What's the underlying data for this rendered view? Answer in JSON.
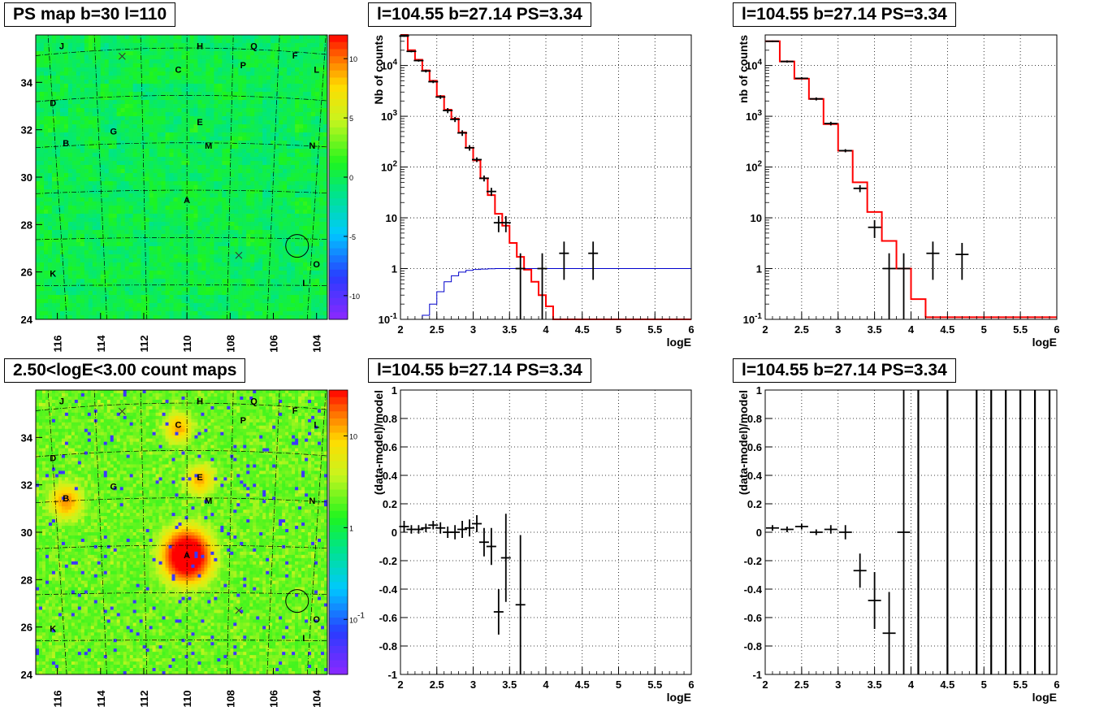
{
  "titles": {
    "map_top": "PS map b=30 l=110",
    "spec_top_mid": "l=104.55 b=27.14 PS=3.34",
    "spec_top_right": "l=104.55 b=27.14 PS=3.34",
    "map_bottom": "2.50<logE<3.00 count maps",
    "res_bottom_mid": "l=104.55 b=27.14 PS=3.34",
    "res_bottom_right": "l=104.55 b=27.14 PS=3.34"
  },
  "colors": {
    "data": "#000000",
    "model": "#ff0000",
    "model_blue": "#0000cc",
    "grid": "#000000"
  },
  "chart_data": [
    {
      "id": "ps_map",
      "type": "heatmap",
      "title": "PS map b=30 l=110",
      "xlim": [
        117,
        103.5
      ],
      "ylim": [
        24,
        36
      ],
      "x_ticks": [
        "116",
        "114",
        "112",
        "110",
        "108",
        "106",
        "104"
      ],
      "y_ticks": [
        "24",
        "26",
        "28",
        "30",
        "32",
        "34"
      ],
      "colorbar_ticks": [
        "10",
        "5",
        "0",
        "-5",
        "-10"
      ],
      "colorbar_range": [
        -12,
        12
      ],
      "sources": [
        {
          "label": "J",
          "l": 115.8,
          "b": 35.4
        },
        {
          "label": "H",
          "l": 109.4,
          "b": 35.4
        },
        {
          "label": "Q",
          "l": 106.9,
          "b": 35.4
        },
        {
          "label": "F",
          "l": 105.0,
          "b": 35.0
        },
        {
          "label": "P",
          "l": 107.4,
          "b": 34.6
        },
        {
          "label": "C",
          "l": 110.4,
          "b": 34.4
        },
        {
          "label": "L",
          "l": 104.0,
          "b": 34.4
        },
        {
          "label": "D",
          "l": 116.2,
          "b": 33.0
        },
        {
          "label": "E",
          "l": 109.4,
          "b": 32.2
        },
        {
          "label": "G",
          "l": 113.4,
          "b": 31.8
        },
        {
          "label": "B",
          "l": 115.6,
          "b": 31.3
        },
        {
          "label": "M",
          "l": 109.0,
          "b": 31.2
        },
        {
          "label": "N",
          "l": 104.2,
          "b": 31.2
        },
        {
          "label": "A",
          "l": 110.0,
          "b": 28.9
        },
        {
          "label": "O",
          "l": 104.0,
          "b": 26.2
        },
        {
          "label": "K",
          "l": 116.2,
          "b": 25.8
        },
        {
          "label": "I",
          "l": 104.6,
          "b": 25.4
        }
      ],
      "crosses": [
        {
          "l": 113.0,
          "b": 35.1
        },
        {
          "l": 107.6,
          "b": 26.7
        }
      ],
      "circle": {
        "l": 104.9,
        "b": 27.1
      }
    },
    {
      "id": "spec_mid",
      "type": "line",
      "title": "l=104.55 b=27.14 PS=3.34",
      "xlabel": "logE",
      "ylabel": "Nb of counts",
      "xlim": [
        2,
        6
      ],
      "ylim": [
        0.1,
        40000
      ],
      "log_y": true,
      "x_ticks": [
        "2",
        "2.5",
        "3",
        "3.5",
        "4",
        "4.5",
        "5",
        "5.5",
        "6"
      ],
      "y_ticks": [
        "10^-1",
        "1",
        "10",
        "10^2",
        "10^3",
        "10^4"
      ],
      "model_red": {
        "edges": [
          2.0,
          2.1,
          2.2,
          2.3,
          2.4,
          2.5,
          2.6,
          2.7,
          2.8,
          2.9,
          3.0,
          3.1,
          3.2,
          3.3,
          3.4,
          3.5,
          3.6,
          3.7,
          3.8,
          3.9,
          4.0,
          4.1,
          4.2,
          4.3,
          6.0
        ],
        "values": [
          40000,
          20000,
          13000,
          8000,
          5000,
          2500,
          1350,
          900,
          480,
          240,
          135,
          60,
          28,
          12,
          7,
          3.2,
          1.7,
          0.95,
          0.55,
          0.3,
          0.18,
          0.1,
          0.1,
          0.1
        ]
      },
      "model_blue": {
        "edges": [
          2.0,
          2.3,
          2.4,
          2.5,
          2.6,
          2.7,
          2.8,
          2.9,
          3.0,
          3.1,
          3.2,
          3.3,
          3.4,
          3.5,
          6.0
        ],
        "values": [
          0.1,
          0.12,
          0.2,
          0.35,
          0.55,
          0.72,
          0.85,
          0.92,
          0.96,
          0.98,
          0.99,
          1.0,
          1.0,
          1.0
        ]
      },
      "data": [
        {
          "x": 2.05,
          "y": 38000,
          "yerr": 1200
        },
        {
          "x": 2.15,
          "y": 19000,
          "yerr": 800
        },
        {
          "x": 2.25,
          "y": 12500,
          "yerr": 600
        },
        {
          "x": 2.35,
          "y": 7800,
          "yerr": 500
        },
        {
          "x": 2.45,
          "y": 4800,
          "yerr": 300
        },
        {
          "x": 2.55,
          "y": 2400,
          "yerr": 200
        },
        {
          "x": 2.65,
          "y": 1300,
          "yerr": 150
        },
        {
          "x": 2.75,
          "y": 870,
          "yerr": 100
        },
        {
          "x": 2.85,
          "y": 470,
          "yerr": 60
        },
        {
          "x": 2.95,
          "y": 240,
          "yerr": 30
        },
        {
          "x": 3.05,
          "y": 140,
          "yerr": 15
        },
        {
          "x": 3.15,
          "y": 60,
          "yerr": 8
        },
        {
          "x": 3.25,
          "y": 33,
          "yerr": 6
        },
        {
          "x": 3.35,
          "y": 8,
          "yerr": 2.8
        },
        {
          "x": 3.45,
          "y": 8,
          "yerr": 2.8
        },
        {
          "x": 3.65,
          "y": 1,
          "yerr": 1
        },
        {
          "x": 3.95,
          "y": 1,
          "yerr": 1
        },
        {
          "x": 4.25,
          "y": 2,
          "yerr": 1.4
        },
        {
          "x": 4.65,
          "y": 2,
          "yerr": 1.4
        }
      ]
    },
    {
      "id": "spec_right",
      "type": "line",
      "title": "l=104.55 b=27.14 PS=3.34",
      "xlabel": "logE",
      "ylabel": "nb of counts",
      "xlim": [
        2,
        6
      ],
      "ylim": [
        0.1,
        40000
      ],
      "log_y": true,
      "x_ticks": [
        "2",
        "2.5",
        "3",
        "3.5",
        "4",
        "4.5",
        "5",
        "5.5",
        "6"
      ],
      "y_ticks": [
        "10^-1",
        "1",
        "10",
        "10^2",
        "10^3",
        "10^4"
      ],
      "model_red": {
        "edges": [
          2.0,
          2.2,
          2.4,
          2.6,
          2.8,
          3.0,
          3.2,
          3.4,
          3.6,
          3.8,
          4.0,
          4.2,
          6.0
        ],
        "values": [
          30000,
          12000,
          5500,
          2200,
          700,
          210,
          50,
          13,
          3.5,
          1.0,
          0.25,
          0.11
        ]
      },
      "data": [
        {
          "x": 2.1,
          "y": 30000,
          "yerr": 1000
        },
        {
          "x": 2.3,
          "y": 12000,
          "yerr": 600
        },
        {
          "x": 2.5,
          "y": 5600,
          "yerr": 300
        },
        {
          "x": 2.7,
          "y": 2200,
          "yerr": 150
        },
        {
          "x": 2.9,
          "y": 720,
          "yerr": 60
        },
        {
          "x": 3.1,
          "y": 210,
          "yerr": 15
        },
        {
          "x": 3.3,
          "y": 38,
          "yerr": 6
        },
        {
          "x": 3.5,
          "y": 6.5,
          "yerr": 2.5
        },
        {
          "x": 3.7,
          "y": 1,
          "yerr": 1
        },
        {
          "x": 3.9,
          "y": 1,
          "yerr": 1
        },
        {
          "x": 4.3,
          "y": 2,
          "yerr": 1.4
        },
        {
          "x": 4.7,
          "y": 1.9,
          "yerr": 1.3
        }
      ]
    },
    {
      "id": "count_map",
      "type": "heatmap",
      "title": "2.50<logE<3.00 count maps",
      "xlim": [
        117,
        103.5
      ],
      "ylim": [
        24,
        36
      ],
      "x_ticks": [
        "116",
        "114",
        "112",
        "110",
        "108",
        "106",
        "104"
      ],
      "y_ticks": [
        "24",
        "26",
        "28",
        "30",
        "32",
        "34"
      ],
      "colorbar_ticks": [
        "10",
        "1",
        "10^-1"
      ],
      "log_color": true,
      "hotspots": [
        {
          "label": "A",
          "l": 110.0,
          "b": 29.0,
          "amp": 60,
          "width": 0.55
        },
        {
          "label": "B",
          "l": 115.6,
          "b": 31.3,
          "amp": 12,
          "width": 0.4
        },
        {
          "label": "C",
          "l": 110.4,
          "b": 34.4,
          "amp": 10,
          "width": 0.35
        },
        {
          "label": "E",
          "l": 109.4,
          "b": 32.2,
          "amp": 10,
          "width": 0.35
        }
      ],
      "sources": [
        {
          "label": "J",
          "l": 115.8,
          "b": 35.4
        },
        {
          "label": "H",
          "l": 109.4,
          "b": 35.4
        },
        {
          "label": "Q",
          "l": 106.9,
          "b": 35.4
        },
        {
          "label": "F",
          "l": 105.0,
          "b": 35.0
        },
        {
          "label": "P",
          "l": 107.4,
          "b": 34.6
        },
        {
          "label": "C",
          "l": 110.4,
          "b": 34.4
        },
        {
          "label": "L",
          "l": 104.0,
          "b": 34.4
        },
        {
          "label": "D",
          "l": 116.2,
          "b": 33.0
        },
        {
          "label": "E",
          "l": 109.4,
          "b": 32.2
        },
        {
          "label": "G",
          "l": 113.4,
          "b": 31.8
        },
        {
          "label": "B",
          "l": 115.6,
          "b": 31.3
        },
        {
          "label": "M",
          "l": 109.0,
          "b": 31.2
        },
        {
          "label": "N",
          "l": 104.2,
          "b": 31.2
        },
        {
          "label": "A",
          "l": 110.0,
          "b": 28.9
        },
        {
          "label": "O",
          "l": 104.0,
          "b": 26.2
        },
        {
          "label": "K",
          "l": 116.2,
          "b": 25.8
        },
        {
          "label": "I",
          "l": 104.6,
          "b": 25.4
        }
      ],
      "crosses": [
        {
          "l": 113.0,
          "b": 35.1
        },
        {
          "l": 107.6,
          "b": 26.7
        }
      ],
      "circle": {
        "l": 104.9,
        "b": 27.1
      }
    },
    {
      "id": "res_mid",
      "type": "scatter",
      "title": "l=104.55 b=27.14 PS=3.34",
      "xlabel": "logE",
      "ylabel": "(data-model)/model",
      "xlim": [
        2,
        6
      ],
      "ylim": [
        -1,
        1
      ],
      "x_ticks": [
        "2",
        "2.5",
        "3",
        "3.5",
        "4",
        "4.5",
        "5",
        "5.5",
        "6"
      ],
      "y_ticks": [
        "-1",
        "-0.8",
        "-0.6",
        "-0.4",
        "-0.2",
        "0",
        "0.2",
        "0.4",
        "0.6",
        "0.8",
        "1"
      ],
      "data": [
        {
          "x": 2.05,
          "y": 0.04,
          "yerr": 0.04
        },
        {
          "x": 2.15,
          "y": 0.02,
          "yerr": 0.03
        },
        {
          "x": 2.25,
          "y": 0.02,
          "yerr": 0.03
        },
        {
          "x": 2.35,
          "y": 0.03,
          "yerr": 0.03
        },
        {
          "x": 2.45,
          "y": 0.05,
          "yerr": 0.03
        },
        {
          "x": 2.55,
          "y": 0.03,
          "yerr": 0.04
        },
        {
          "x": 2.65,
          "y": 0.0,
          "yerr": 0.04
        },
        {
          "x": 2.75,
          "y": 0.0,
          "yerr": 0.05
        },
        {
          "x": 2.85,
          "y": 0.02,
          "yerr": 0.06
        },
        {
          "x": 2.95,
          "y": 0.03,
          "yerr": 0.06
        },
        {
          "x": 3.05,
          "y": 0.06,
          "yerr": 0.06
        },
        {
          "x": 3.15,
          "y": -0.07,
          "yerr": 0.1
        },
        {
          "x": 3.25,
          "y": -0.1,
          "yerr": 0.13
        },
        {
          "x": 3.35,
          "y": -0.56,
          "yerr": 0.16
        },
        {
          "x": 3.45,
          "y": -0.18,
          "yerr": 0.31
        },
        {
          "x": 3.65,
          "y": -0.51,
          "yerr": 0.49
        }
      ]
    },
    {
      "id": "res_right",
      "type": "scatter",
      "title": "l=104.55 b=27.14 PS=3.34",
      "xlabel": "logE",
      "ylabel": "(data-model)/model",
      "xlim": [
        2,
        6
      ],
      "ylim": [
        -1,
        1
      ],
      "x_ticks": [
        "2",
        "2.5",
        "3",
        "3.5",
        "4",
        "4.5",
        "5",
        "5.5",
        "6"
      ],
      "y_ticks": [
        "-1",
        "-0.8",
        "-0.6",
        "-0.4",
        "-0.2",
        "0",
        "0.2",
        "0.4",
        "0.6",
        "0.8",
        "1"
      ],
      "data": [
        {
          "x": 2.1,
          "y": 0.03,
          "yerr": 0.02
        },
        {
          "x": 2.3,
          "y": 0.02,
          "yerr": 0.02
        },
        {
          "x": 2.5,
          "y": 0.04,
          "yerr": 0.02
        },
        {
          "x": 2.7,
          "y": 0.0,
          "yerr": 0.02
        },
        {
          "x": 2.9,
          "y": 0.02,
          "yerr": 0.03
        },
        {
          "x": 3.1,
          "y": 0.0,
          "yerr": 0.05
        },
        {
          "x": 3.3,
          "y": -0.27,
          "yerr": 0.12
        },
        {
          "x": 3.5,
          "y": -0.48,
          "yerr": 0.2
        },
        {
          "x": 3.7,
          "y": -0.71,
          "yerr": 0.29
        },
        {
          "x": 3.9,
          "y": 0.0,
          "yerr": 1.0
        }
      ],
      "full_bars": [
        4.1,
        4.5,
        4.9,
        5.1,
        5.3,
        5.5,
        5.7,
        5.9
      ]
    }
  ]
}
